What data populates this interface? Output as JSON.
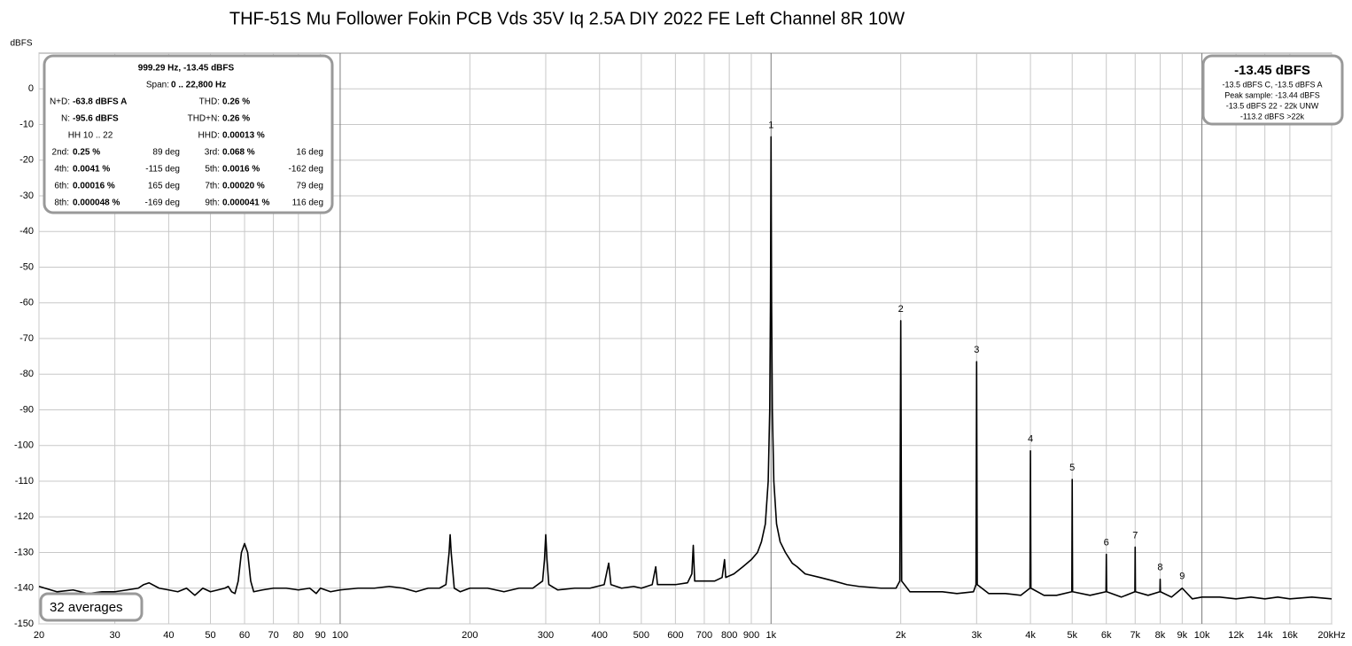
{
  "chart_data": {
    "type": "line",
    "title": "THF-51S Mu Follower Fokin PCB Vds 35V Iq 2.5A DIY 2022 FE Left Channel 8R 10W",
    "ylabel": "dBFS",
    "xscale": "log",
    "grid": true,
    "color": "#000000",
    "xlim": [
      20,
      20000
    ],
    "ylim": [
      -150,
      10
    ],
    "yticks": [
      0,
      -10,
      -20,
      -30,
      -40,
      -50,
      -60,
      -70,
      -80,
      -90,
      -100,
      -110,
      -120,
      -130,
      -140,
      -150
    ],
    "xticks": [
      20,
      30,
      40,
      50,
      60,
      70,
      80,
      90,
      100,
      200,
      300,
      400,
      500,
      600,
      700,
      800,
      900,
      {
        "value": 1000,
        "label": "1k"
      },
      {
        "value": 2000,
        "label": "2k"
      },
      {
        "value": 3000,
        "label": "3k"
      },
      {
        "value": 4000,
        "label": "4k"
      },
      {
        "value": 5000,
        "label": "5k"
      },
      {
        "value": 6000,
        "label": "6k"
      },
      {
        "value": 7000,
        "label": "7k"
      },
      {
        "value": 8000,
        "label": "8k"
      },
      {
        "value": 9000,
        "label": "9k"
      },
      {
        "value": 10000,
        "label": "10k"
      },
      {
        "value": 12000,
        "label": "12k",
        "color": "#a8a8a8"
      },
      {
        "value": 14000,
        "label": "14k",
        "color": "#a8a8a8"
      },
      {
        "value": 16000,
        "label": "16k",
        "color": "#a8a8a8"
      },
      {
        "value": 20000,
        "label": "20kHz"
      }
    ],
    "x": [
      20,
      22,
      24,
      26,
      28,
      30,
      32,
      34,
      35,
      36,
      38,
      40,
      42,
      44,
      46,
      48,
      50,
      52,
      54,
      55,
      56,
      57,
      58,
      59,
      60,
      61,
      62,
      63,
      66,
      70,
      75,
      80,
      85,
      88,
      90,
      95,
      100,
      110,
      120,
      130,
      140,
      150,
      160,
      170,
      176,
      179,
      180,
      181,
      184,
      190,
      200,
      220,
      240,
      260,
      280,
      295,
      298,
      300,
      302,
      305,
      320,
      350,
      380,
      410,
      420,
      425,
      450,
      480,
      500,
      530,
      540,
      545,
      580,
      600,
      640,
      655,
      660,
      665,
      700,
      740,
      770,
      780,
      785,
      820,
      860,
      900,
      930,
      950,
      970,
      985,
      993,
      997,
      999,
      1000,
      1001,
      1003,
      1007,
      1015,
      1030,
      1050,
      1080,
      1120,
      1150,
      1200,
      1300,
      1400,
      1500,
      1600,
      1800,
      1950,
      1990,
      2000,
      2010,
      2100,
      2300,
      2500,
      2700,
      2950,
      2990,
      3000,
      3010,
      3200,
      3500,
      3800,
      3990,
      4000,
      4010,
      4300,
      4600,
      4990,
      5000,
      5010,
      5500,
      5990,
      6000,
      6010,
      6500,
      6990,
      7000,
      7010,
      7500,
      7990,
      8000,
      8010,
      8500,
      9000,
      9500,
      10000,
      11000,
      12000,
      13000,
      14000,
      15000,
      16000,
      18000,
      20000
    ],
    "values": [
      -139.5,
      -141,
      -140.5,
      -141.5,
      -141,
      -141,
      -140.5,
      -140,
      -139,
      -138.5,
      -140,
      -140.5,
      -141,
      -140,
      -142,
      -140,
      -141,
      -140.5,
      -140,
      -139.5,
      -141,
      -141.5,
      -138,
      -130,
      -127.5,
      -130,
      -138,
      -141,
      -140.5,
      -140,
      -140,
      -140.5,
      -140,
      -141.5,
      -140,
      -141,
      -140.5,
      -140,
      -140,
      -139.5,
      -140,
      -141,
      -140,
      -140,
      -139,
      -130,
      -125,
      -130,
      -140,
      -141,
      -140,
      -140,
      -141,
      -140,
      -140,
      -138,
      -132,
      -125,
      -132,
      -139,
      -140.5,
      -140,
      -140,
      -139,
      -133,
      -139,
      -140,
      -139.5,
      -140,
      -139,
      -134,
      -139,
      -139,
      -139,
      -138.5,
      -136,
      -128,
      -138,
      -138,
      -138,
      -137,
      -132,
      -137,
      -136,
      -134,
      -132,
      -130,
      -127,
      -122,
      -110,
      -90,
      -60,
      -30,
      -13.45,
      -30,
      -60,
      -90,
      -110,
      -122,
      -127,
      -130,
      -133,
      -134,
      -136,
      -137,
      -138,
      -139,
      -139.5,
      -140,
      -140,
      -138,
      -65,
      -138,
      -141,
      -141,
      -141,
      -141.5,
      -141,
      -139,
      -76.5,
      -139,
      -141.5,
      -141.5,
      -142,
      -140,
      -101.5,
      -140,
      -142,
      -142,
      -141,
      -109.5,
      -141,
      -142,
      -141,
      -130.5,
      -141,
      -142.5,
      -141,
      -128.5,
      -141,
      -142,
      -141,
      -137.5,
      -141,
      -142.5,
      -140,
      -143,
      -142.5,
      -142.5,
      -143,
      -142.5,
      -143,
      -142.5,
      -143,
      -142.5,
      -143
    ],
    "annotations": [
      {
        "text": "1",
        "x": 1000,
        "y": -13.45
      },
      {
        "text": "2",
        "x": 2000,
        "y": -65
      },
      {
        "text": "3",
        "x": 3000,
        "y": -76.5
      },
      {
        "text": "4",
        "x": 4000,
        "y": -101.5
      },
      {
        "text": "5",
        "x": 5000,
        "y": -109.5
      },
      {
        "text": "6",
        "x": 6000,
        "y": -130.5
      },
      {
        "text": "7",
        "x": 7000,
        "y": -128.5
      },
      {
        "text": "8",
        "x": 8000,
        "y": -137.5
      },
      {
        "text": "9",
        "x": 9000,
        "y": -140
      }
    ],
    "info_panel": {
      "header": "999.29 Hz, -13.45 dBFS",
      "span_label": "Span:",
      "span": "0 .. 22,800 Hz",
      "stats": [
        {
          "left": [
            "N+D:",
            "-63.8 dBFS A"
          ],
          "right": [
            "THD:",
            "0.26 %"
          ]
        },
        {
          "left": [
            "N:",
            "-95.6 dBFS"
          ],
          "right": [
            "THD+N:",
            "0.26 %"
          ]
        },
        {
          "left": [
            "HH 10 .. 22"
          ],
          "right": [
            "HHD:",
            "0.00013 %"
          ]
        }
      ],
      "harmonics": [
        {
          "left": [
            "2nd:",
            "0.25 %",
            "89 deg"
          ],
          "right": [
            "3rd:",
            "0.068 %",
            "16 deg"
          ]
        },
        {
          "left": [
            "4th:",
            "0.0041 %",
            "-115 deg"
          ],
          "right": [
            "5th:",
            "0.0016 %",
            "-162 deg"
          ]
        },
        {
          "left": [
            "6th:",
            "0.00016 %",
            "165 deg"
          ],
          "right": [
            "7th:",
            "0.00020 %",
            "79 deg"
          ]
        },
        {
          "left": [
            "8th:",
            "0.000048 %",
            "-169 deg"
          ],
          "right": [
            "9th:",
            "0.000041 %",
            "116 deg"
          ]
        }
      ]
    },
    "level_panel": {
      "level": "-13.45 dBFS",
      "lines": [
        "-13.5 dBFS C, -13.5 dBFS A",
        "Peak sample: -13.44 dBFS",
        "-13.5 dBFS 22 - 22k UNW",
        "-113.2 dBFS >22k"
      ]
    },
    "averages": "32 averages"
  }
}
